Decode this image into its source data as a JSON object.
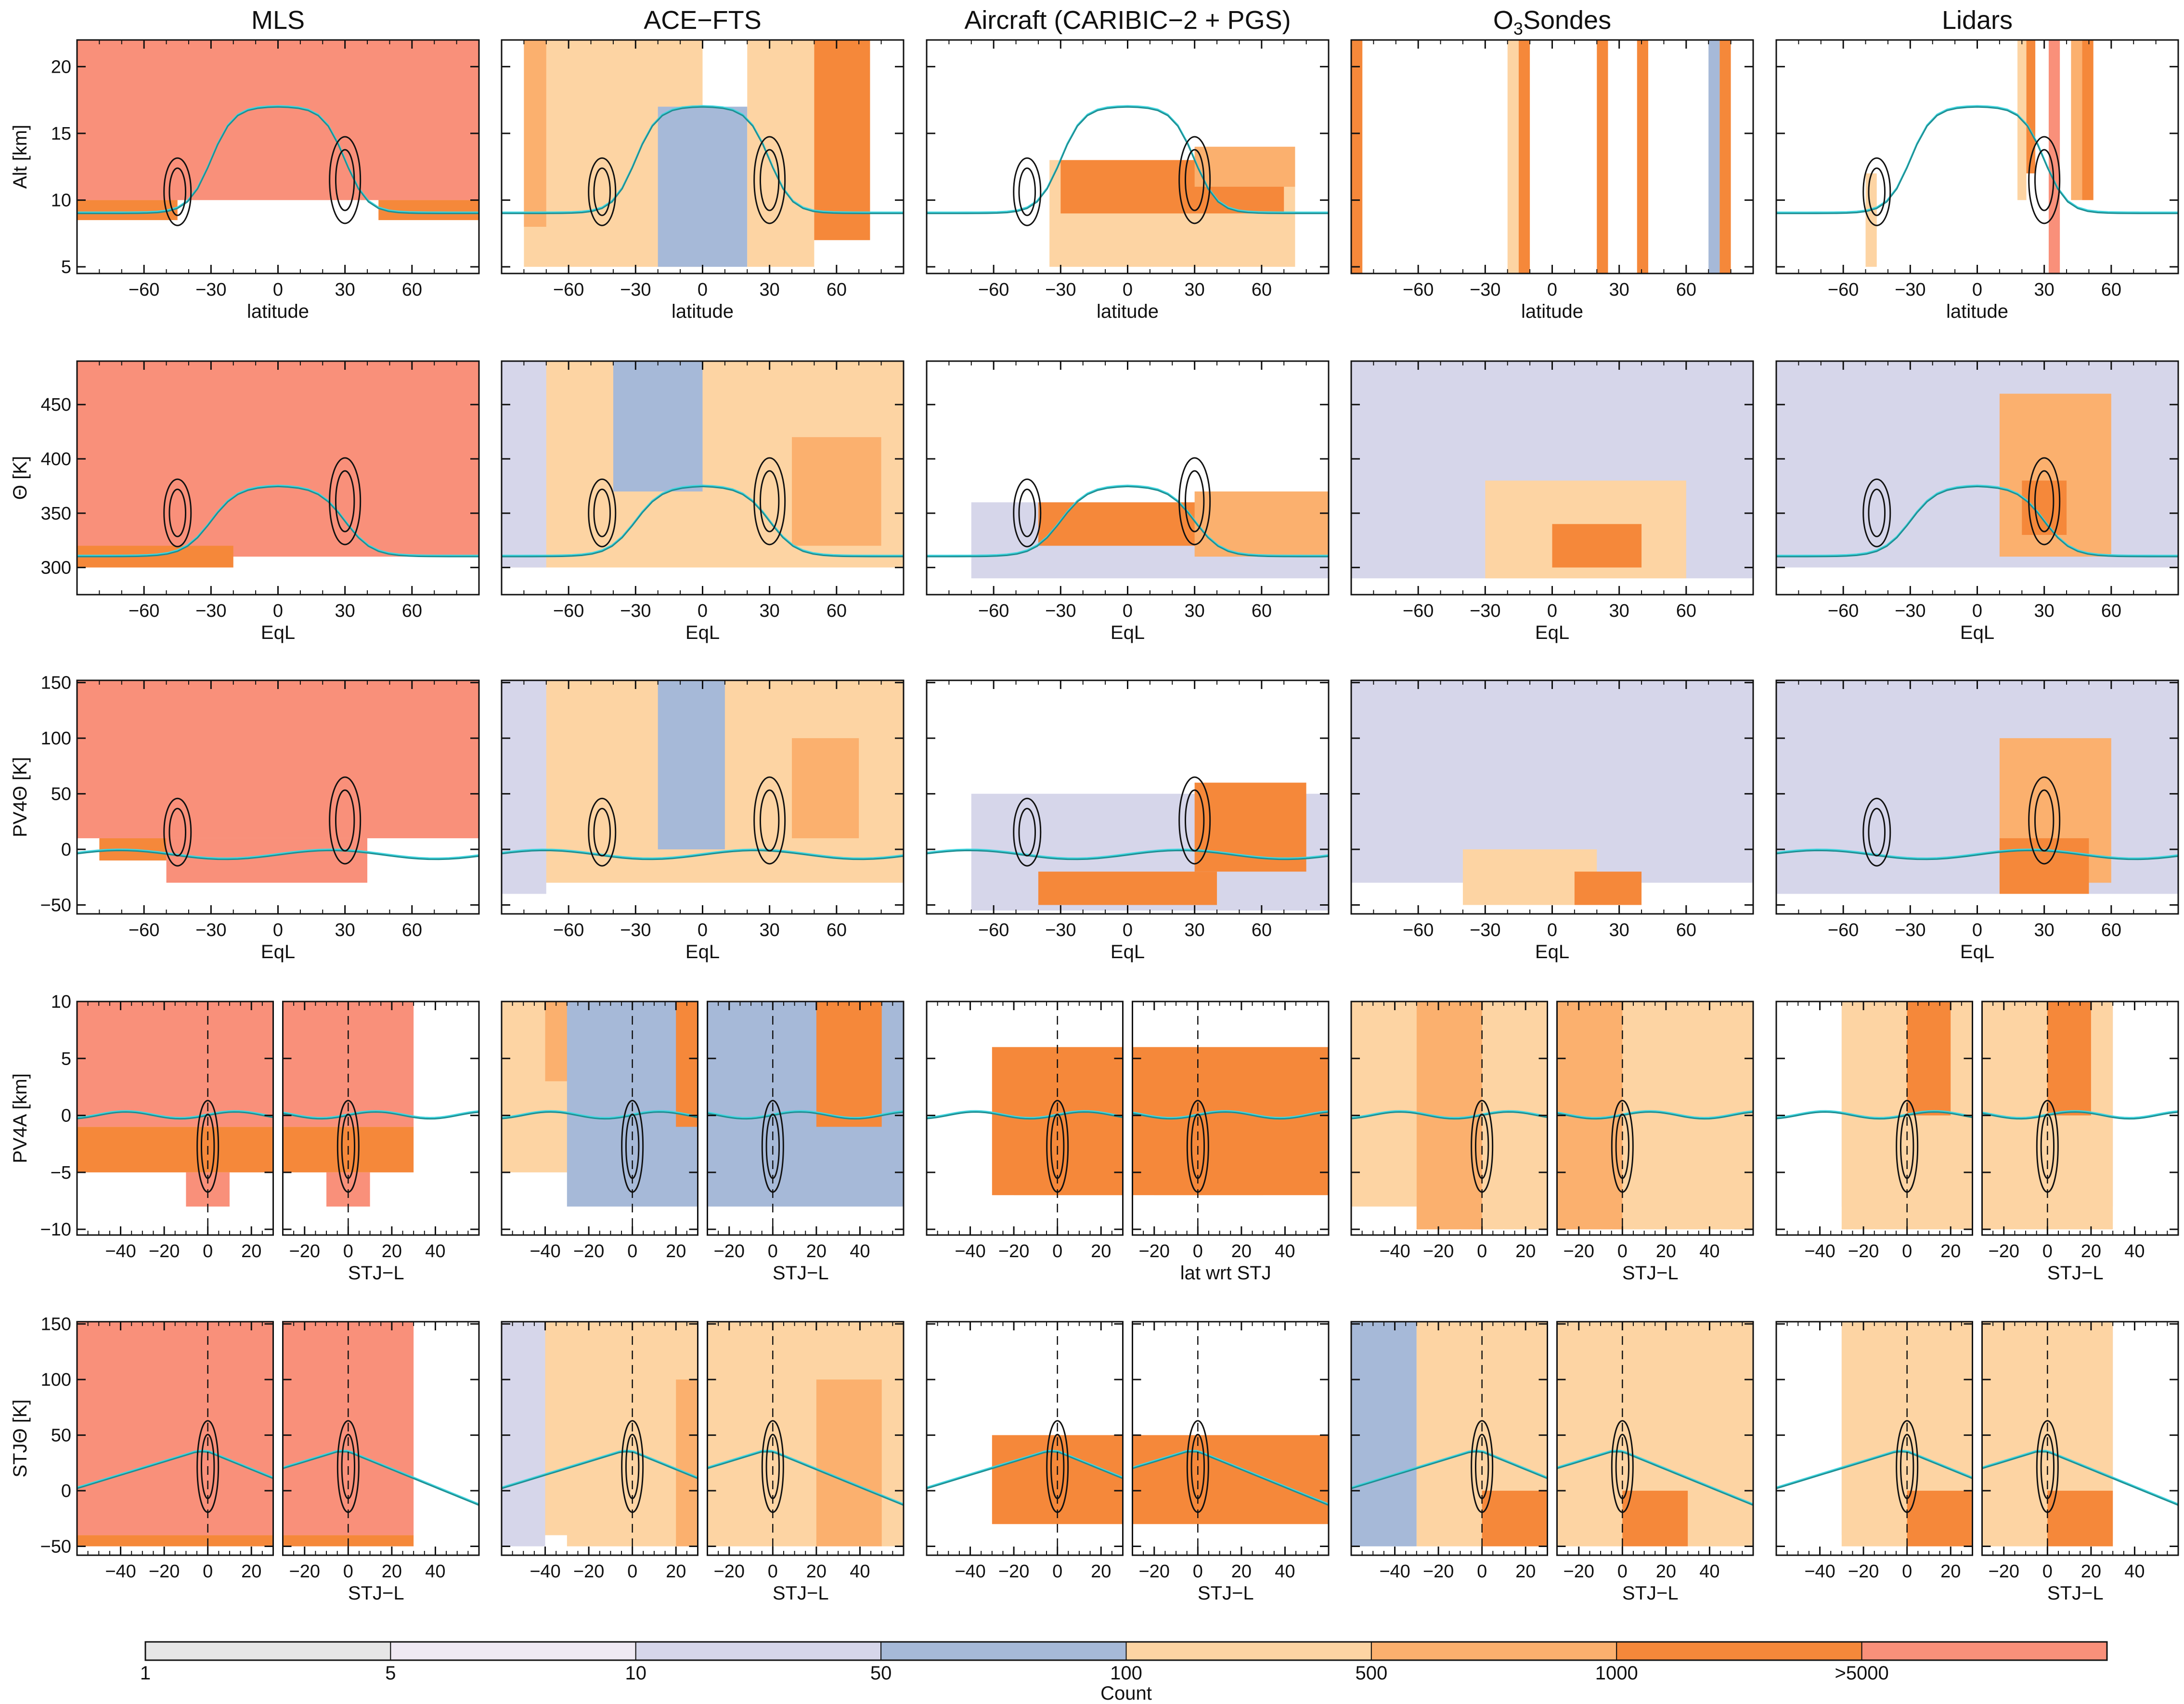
{
  "column_titles": [
    "MLS",
    "ACE−FTS",
    "Aircraft (CARIBIC−2 + PGS)",
    "O3Sondes",
    "Lidars"
  ],
  "row_ylabels": [
    "Alt [km]",
    "Θ [K]",
    "PV4Θ [K]",
    "PV4A [km]",
    "STJΘ [K]"
  ],
  "row_xlabels": [
    "latitude",
    "EqL",
    "EqL",
    "STJ−L",
    "STJ−L"
  ],
  "aircraft_row4_xlabel": "lat wrt STJ",
  "colorbar": {
    "label": "Count",
    "tick_labels": [
      "1",
      "5",
      "10",
      "50",
      "100",
      "500",
      "1000",
      ">5000"
    ],
    "colors": [
      "#e6e6e6",
      "#efe9f3",
      "#d6d6ea",
      "#a6b9d8",
      "#fdd4a3",
      "#fbb06e",
      "#f5883a",
      "#f9907a"
    ]
  },
  "colors": {
    "contour": "#111111",
    "line_teal": "#1f8f93",
    "line_cyan": "#3fd6e0",
    "flag_x": "#333333"
  },
  "chart_data": {
    "type": "heatmap",
    "title": "",
    "rows": [
      {
        "ylabel": "Alt [km]",
        "xlabel": "latitude",
        "xlim": [
          -90,
          90
        ],
        "ylim": [
          4.5,
          22
        ],
        "xticks": [
          -60,
          -30,
          0,
          30,
          60
        ],
        "yticks": [
          5,
          10,
          15,
          20
        ]
      },
      {
        "ylabel": "Θ [K]",
        "xlabel": "EqL",
        "xlim": [
          -90,
          90
        ],
        "ylim": [
          275,
          490
        ],
        "xticks": [
          -60,
          -30,
          0,
          30,
          60
        ],
        "yticks": [
          300,
          350,
          400,
          450
        ]
      },
      {
        "ylabel": "PV4Θ [K]",
        "xlabel": "EqL",
        "xlim": [
          -90,
          90
        ],
        "ylim": [
          -58,
          152
        ],
        "xticks": [
          -60,
          -30,
          0,
          30,
          60
        ],
        "yticks": [
          -50,
          0,
          50,
          100,
          150
        ]
      },
      {
        "ylabel": "PV4A [km]",
        "xlabel": "STJ−L",
        "split": true,
        "left_xlim": [
          -60,
          30
        ],
        "right_xlim": [
          -30,
          60
        ],
        "left_xticks": [
          -40,
          -20,
          0,
          20
        ],
        "right_xticks": [
          -20,
          0,
          20,
          40
        ],
        "ylim": [
          -10.5,
          10
        ],
        "yticks": [
          -10,
          -5,
          0,
          5,
          10
        ]
      },
      {
        "ylabel": "STJΘ [K]",
        "xlabel": "STJ−L",
        "split": true,
        "left_xlim": [
          -60,
          30
        ],
        "right_xlim": [
          -30,
          60
        ],
        "left_xticks": [
          -40,
          -20,
          0,
          20
        ],
        "right_xticks": [
          -20,
          0,
          20,
          40
        ],
        "ylim": [
          -58,
          152
        ],
        "yticks": [
          -50,
          0,
          50,
          100,
          150
        ]
      }
    ],
    "columns": [
      "MLS",
      "ACE−FTS",
      "Aircraft (CARIBIC−2 + PGS)",
      "O3Sondes",
      "Lidars"
    ],
    "count_bins": [
      1,
      5,
      10,
      50,
      100,
      500,
      1000,
      5000
    ],
    "fields": {
      "MLS": [
        [
          {
            "x": [
              -90,
              90
            ],
            "y": [
              10,
              22
            ],
            "bin": 7
          },
          {
            "x": [
              -90,
              -45
            ],
            "y": [
              8.5,
              10
            ],
            "bin": 6
          },
          {
            "x": [
              45,
              90
            ],
            "y": [
              8.5,
              10
            ],
            "bin": 6
          }
        ],
        [
          {
            "x": [
              -90,
              90
            ],
            "y": [
              310,
              490
            ],
            "bin": 7
          },
          {
            "x": [
              -90,
              -20
            ],
            "y": [
              300,
              320
            ],
            "bin": 6
          }
        ],
        [
          {
            "x": [
              -90,
              90
            ],
            "y": [
              10,
              152
            ],
            "bin": 7
          },
          {
            "x": [
              -50,
              40
            ],
            "y": [
              -30,
              10
            ],
            "bin": 7
          },
          {
            "x": [
              -80,
              -50
            ],
            "y": [
              -10,
              10
            ],
            "bin": 6
          }
        ],
        [
          {
            "x": [
              -60,
              30
            ],
            "y": [
              -1,
              10
            ],
            "bin": 7
          },
          {
            "x": [
              -60,
              30
            ],
            "y": [
              -5,
              -1
            ],
            "bin": 6
          },
          {
            "x": [
              -10,
              10
            ],
            "y": [
              -8,
              -5
            ],
            "bin": 7
          }
        ],
        [
          {
            "x": [
              -60,
              30
            ],
            "y": [
              -40,
              152
            ],
            "bin": 7
          },
          {
            "x": [
              -60,
              30
            ],
            "y": [
              -50,
              -40
            ],
            "bin": 6
          }
        ]
      ],
      "ACE−FTS": [
        [
          {
            "x": [
              -80,
              0
            ],
            "y": [
              5,
              22
            ],
            "bin": 4
          },
          {
            "x": [
              -20,
              20
            ],
            "y": [
              5,
              17
            ],
            "bin": 3
          },
          {
            "x": [
              20,
              50
            ],
            "y": [
              5,
              22
            ],
            "bin": 4
          },
          {
            "x": [
              50,
              75
            ],
            "y": [
              7,
              22
            ],
            "bin": 6
          },
          {
            "x": [
              -80,
              -70
            ],
            "y": [
              8,
              22
            ],
            "bin": 5
          }
        ],
        [
          {
            "x": [
              -90,
              90
            ],
            "y": [
              300,
              490
            ],
            "bin": 4
          },
          {
            "x": [
              -40,
              0
            ],
            "y": [
              370,
              490
            ],
            "bin": 3
          },
          {
            "x": [
              40,
              80
            ],
            "y": [
              320,
              420
            ],
            "bin": 5
          },
          {
            "x": [
              -90,
              -70
            ],
            "y": [
              300,
              490
            ],
            "bin": 2
          }
        ],
        [
          {
            "x": [
              -90,
              90
            ],
            "y": [
              -30,
              152
            ],
            "bin": 4
          },
          {
            "x": [
              -20,
              10
            ],
            "y": [
              0,
              152
            ],
            "bin": 3
          },
          {
            "x": [
              40,
              70
            ],
            "y": [
              10,
              100
            ],
            "bin": 5
          },
          {
            "x": [
              -90,
              -70
            ],
            "y": [
              -40,
              152
            ],
            "bin": 2
          }
        ],
        [
          {
            "x": [
              -60,
              30
            ],
            "y": [
              -5,
              10
            ],
            "bin": 4
          },
          {
            "x": [
              -40,
              -20
            ],
            "y": [
              3,
              10
            ],
            "bin": 5
          },
          {
            "x": [
              -30,
              60
            ],
            "y": [
              -8,
              10
            ],
            "bin": 3
          },
          {
            "x": [
              20,
              50
            ],
            "y": [
              -1,
              10
            ],
            "bin": 6
          }
        ],
        [
          {
            "x": [
              -60,
              30
            ],
            "y": [
              -40,
              152
            ],
            "bin": 4
          },
          {
            "x": [
              -60,
              -40
            ],
            "y": [
              -50,
              152
            ],
            "bin": 2
          },
          {
            "x": [
              -30,
              60
            ],
            "y": [
              -50,
              152
            ],
            "bin": 4
          },
          {
            "x": [
              20,
              50
            ],
            "y": [
              -50,
              100
            ],
            "bin": 5
          }
        ]
      ],
      "Aircraft (CARIBIC−2 + PGS)": [
        [
          {
            "x": [
              -35,
              75
            ],
            "y": [
              5,
              13
            ],
            "bin": 4
          },
          {
            "x": [
              -30,
              70
            ],
            "y": [
              9,
              13
            ],
            "bin": 6
          },
          {
            "x": [
              30,
              75
            ],
            "y": [
              11,
              14
            ],
            "bin": 5
          }
        ],
        [
          {
            "x": [
              -70,
              90
            ],
            "y": [
              290,
              360
            ],
            "bin": 2
          },
          {
            "x": [
              -40,
              60
            ],
            "y": [
              320,
              360
            ],
            "bin": 6
          },
          {
            "x": [
              30,
              90
            ],
            "y": [
              310,
              370
            ],
            "bin": 5
          }
        ],
        [
          {
            "x": [
              -70,
              90
            ],
            "y": [
              -55,
              50
            ],
            "bin": 2
          },
          {
            "x": [
              -40,
              40
            ],
            "y": [
              -50,
              -20
            ],
            "bin": 6
          },
          {
            "x": [
              30,
              80
            ],
            "y": [
              -20,
              60
            ],
            "bin": 6
          }
        ],
        [
          {
            "x": [
              -20,
              30
            ],
            "y": [
              -7,
              -3
            ],
            "bin": 4
          },
          {
            "x": [
              -30,
              60
            ],
            "y": [
              -7,
              6
            ],
            "bin": 6
          }
        ],
        [
          {
            "x": [
              -20,
              30
            ],
            "y": [
              -10,
              40
            ],
            "bin": 6
          },
          {
            "x": [
              -30,
              60
            ],
            "y": [
              -30,
              50
            ],
            "bin": 6
          }
        ]
      ],
      "O3Sondes": [
        [
          {
            "x": [
              -20,
              -15
            ],
            "y": [
              4.5,
              22
            ],
            "bin": 4
          },
          {
            "x": [
              -15,
              -10
            ],
            "y": [
              4.5,
              22
            ],
            "bin": 6
          },
          {
            "x": [
              20,
              25
            ],
            "y": [
              4.5,
              22
            ],
            "bin": 6
          },
          {
            "x": [
              38,
              43
            ],
            "y": [
              4.5,
              22
            ],
            "bin": 6
          },
          {
            "x": [
              70,
              75
            ],
            "y": [
              4.5,
              22
            ],
            "bin": 3
          },
          {
            "x": [
              75,
              80
            ],
            "y": [
              4.5,
              22
            ],
            "bin": 6
          },
          {
            "x": [
              -90,
              -85
            ],
            "y": [
              4.5,
              22
            ],
            "bin": 6
          }
        ],
        [
          {
            "x": [
              -90,
              90
            ],
            "y": [
              290,
              490
            ],
            "bin": 2
          },
          {
            "x": [
              -30,
              60
            ],
            "y": [
              290,
              380
            ],
            "bin": 4
          },
          {
            "x": [
              0,
              40
            ],
            "y": [
              300,
              340
            ],
            "bin": 6
          }
        ],
        [
          {
            "x": [
              -90,
              90
            ],
            "y": [
              -30,
              152
            ],
            "bin": 2
          },
          {
            "x": [
              -40,
              20
            ],
            "y": [
              -50,
              0
            ],
            "bin": 4
          },
          {
            "x": [
              10,
              40
            ],
            "y": [
              -50,
              -20
            ],
            "bin": 6
          }
        ],
        [
          {
            "x": [
              -60,
              -30
            ],
            "y": [
              -8,
              10
            ],
            "bin": 4
          },
          {
            "x": [
              -30,
              60
            ],
            "y": [
              -10,
              10
            ],
            "bin": 4
          },
          {
            "x": [
              -30,
              0
            ],
            "y": [
              -10,
              10
            ],
            "bin": 5
          }
        ],
        [
          {
            "x": [
              -60,
              -30
            ],
            "y": [
              -50,
              152
            ],
            "bin": 3
          },
          {
            "x": [
              -30,
              60
            ],
            "y": [
              -50,
              152
            ],
            "bin": 4
          },
          {
            "x": [
              0,
              30
            ],
            "y": [
              -50,
              0
            ],
            "bin": 6
          }
        ]
      ],
      "Lidars": [
        [
          {
            "x": [
              -50,
              -45
            ],
            "y": [
              5,
              12
            ],
            "bin": 4
          },
          {
            "x": [
              18,
              22
            ],
            "y": [
              10,
              22
            ],
            "bin": 4
          },
          {
            "x": [
              22,
              26
            ],
            "y": [
              12,
              22
            ],
            "bin": 6
          },
          {
            "x": [
              32,
              37
            ],
            "y": [
              4.5,
              22
            ],
            "bin": 7
          },
          {
            "x": [
              42,
              47
            ],
            "y": [
              10,
              22
            ],
            "bin": 5
          },
          {
            "x": [
              47,
              52
            ],
            "y": [
              10,
              22
            ],
            "bin": 6
          }
        ],
        [
          {
            "x": [
              -90,
              90
            ],
            "y": [
              300,
              490
            ],
            "bin": 2
          },
          {
            "x": [
              10,
              60
            ],
            "y": [
              310,
              460
            ],
            "bin": 5
          },
          {
            "x": [
              20,
              40
            ],
            "y": [
              330,
              380
            ],
            "bin": 6
          }
        ],
        [
          {
            "x": [
              -90,
              90
            ],
            "y": [
              -40,
              152
            ],
            "bin": 2
          },
          {
            "x": [
              10,
              60
            ],
            "y": [
              -30,
              100
            ],
            "bin": 5
          },
          {
            "x": [
              10,
              50
            ],
            "y": [
              -40,
              10
            ],
            "bin": 6
          }
        ],
        [
          {
            "x": [
              -30,
              30
            ],
            "y": [
              -8,
              10
            ],
            "bin": 2
          },
          {
            "x": [
              -30,
              30
            ],
            "y": [
              -10,
              10
            ],
            "bin": 4
          },
          {
            "x": [
              0,
              20
            ],
            "y": [
              0,
              10
            ],
            "bin": 6
          }
        ],
        [
          {
            "x": [
              -30,
              30
            ],
            "y": [
              -40,
              152
            ],
            "bin": 2
          },
          {
            "x": [
              -30,
              30
            ],
            "y": [
              -50,
              152
            ],
            "bin": 4
          },
          {
            "x": [
              0,
              30
            ],
            "y": [
              -50,
              0
            ],
            "bin": 6
          }
        ]
      ]
    }
  }
}
